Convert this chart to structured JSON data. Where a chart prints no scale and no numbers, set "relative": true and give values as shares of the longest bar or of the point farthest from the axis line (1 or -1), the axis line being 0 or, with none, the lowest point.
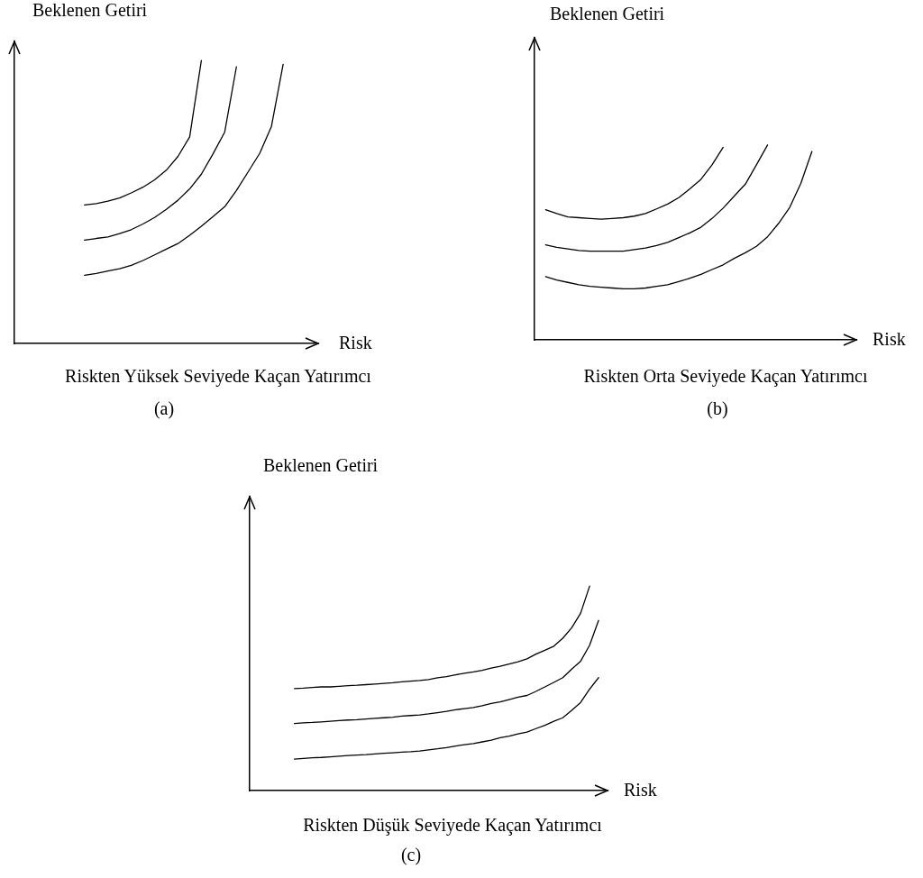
{
  "chart_data": [
    {
      "type": "line",
      "relative": true,
      "tick_labels": false,
      "title": "Riskten Yüksek Seviyede Kaçan Yatırımcı",
      "subtitle": "(a)",
      "xlabel": "Risk",
      "ylabel": "Beklenen Getiri",
      "categories": [
        null,
        null,
        null,
        null,
        null,
        null,
        null,
        null,
        null,
        null,
        null,
        null,
        null,
        null,
        null,
        null,
        null,
        null,
        null,
        null,
        null,
        null,
        null,
        null,
        null,
        null,
        null
      ],
      "series": [
        {
          "color": "#000000",
          "values": [
            null,
            null,
            null,
            null,
            null,
            null,
            0.489,
            0.494,
            0.503,
            0.514,
            0.532,
            0.552,
            0.578,
            0.612,
            0.661,
            0.73,
            1.0,
            null,
            null,
            null,
            null,
            null,
            null,
            null,
            null,
            null,
            null
          ]
        },
        {
          "color": "#000000",
          "values": [
            null,
            null,
            null,
            null,
            null,
            null,
            0.365,
            0.371,
            0.376,
            0.388,
            0.402,
            0.422,
            0.445,
            0.474,
            0.506,
            0.546,
            0.598,
            0.67,
            0.747,
            0.977,
            null,
            null,
            null,
            null,
            null,
            null,
            null
          ]
        },
        {
          "color": "#000000",
          "values": [
            null,
            null,
            null,
            null,
            null,
            null,
            0.241,
            0.247,
            0.256,
            0.264,
            0.276,
            0.293,
            0.313,
            0.333,
            0.353,
            0.382,
            0.414,
            0.448,
            0.483,
            0.54,
            0.606,
            0.672,
            0.767,
            0.986,
            null,
            null,
            null
          ]
        }
      ]
    },
    {
      "type": "line",
      "relative": true,
      "tick_labels": false,
      "title": "Riskten Orta Seviyede Kaçan Yatırımcı",
      "subtitle": "(b)",
      "xlabel": "Risk",
      "ylabel": "Beklenen Getiri",
      "categories": [
        null,
        null,
        null,
        null,
        null,
        null,
        null,
        null,
        null,
        null,
        null,
        null,
        null,
        null,
        null,
        null,
        null,
        null,
        null,
        null,
        null,
        null,
        null,
        null,
        null,
        null,
        null,
        null,
        null,
        null
      ],
      "series": [
        {
          "color": "#000000",
          "values": [
            null,
            0.668,
            0.648,
            0.631,
            0.627,
            0.623,
            0.619,
            0.623,
            0.627,
            0.635,
            0.648,
            0.672,
            0.697,
            0.73,
            0.775,
            0.824,
            0.898,
            0.988,
            null,
            null,
            null,
            null,
            null,
            null,
            null,
            null,
            null,
            null,
            null,
            null
          ]
        },
        {
          "color": "#000000",
          "values": [
            null,
            0.488,
            0.475,
            0.467,
            0.459,
            0.455,
            0.455,
            0.455,
            0.455,
            0.463,
            0.471,
            0.484,
            0.5,
            0.525,
            0.549,
            0.578,
            0.623,
            0.676,
            0.738,
            0.799,
            0.898,
            1.0,
            null,
            null,
            null,
            null,
            null,
            null,
            null,
            null
          ]
        },
        {
          "color": "#000000",
          "values": [
            null,
            0.324,
            0.307,
            0.295,
            0.283,
            0.275,
            0.27,
            0.266,
            0.262,
            0.262,
            0.266,
            0.275,
            0.283,
            0.299,
            0.316,
            0.336,
            0.361,
            0.385,
            0.418,
            0.447,
            0.48,
            0.529,
            0.598,
            0.68,
            0.803,
            0.967,
            null,
            null,
            null,
            null
          ]
        }
      ]
    },
    {
      "type": "line",
      "relative": true,
      "tick_labels": false,
      "title": "Riskten Düşük Seviyede Kaçan Yatırımcı",
      "subtitle": "(c)",
      "xlabel": "Risk",
      "ylabel": "Beklenen Getiri",
      "categories": [
        null,
        null,
        null,
        null,
        null,
        null,
        null,
        null,
        null,
        null,
        null,
        null,
        null,
        null,
        null,
        null,
        null,
        null,
        null,
        null,
        null,
        null,
        null,
        null,
        null,
        null,
        null,
        null,
        null,
        null,
        null,
        null,
        null,
        null,
        null,
        null,
        null,
        null,
        null,
        null,
        null
      ],
      "series": [
        {
          "color": "#000000",
          "values": [
            null,
            null,
            null,
            null,
            null,
            0.499,
            0.501,
            0.504,
            0.507,
            0.507,
            0.51,
            0.513,
            0.515,
            0.518,
            0.521,
            0.524,
            0.527,
            0.532,
            0.535,
            0.538,
            0.543,
            0.552,
            0.557,
            0.566,
            0.574,
            0.58,
            0.588,
            0.599,
            0.608,
            0.619,
            0.63,
            0.644,
            0.667,
            0.686,
            0.706,
            0.745,
            0.796,
            0.868,
            1.0,
            null,
            null
          ]
        },
        {
          "color": "#000000",
          "values": [
            null,
            null,
            null,
            null,
            null,
            0.328,
            0.331,
            0.333,
            0.336,
            0.339,
            0.342,
            0.345,
            0.347,
            0.35,
            0.353,
            0.356,
            0.359,
            0.364,
            0.367,
            0.37,
            0.375,
            0.381,
            0.387,
            0.395,
            0.401,
            0.406,
            0.415,
            0.426,
            0.434,
            0.445,
            0.457,
            0.465,
            0.485,
            0.507,
            0.529,
            0.552,
            0.594,
            0.633,
            0.711,
            0.832,
            null
          ]
        },
        {
          "color": "#000000",
          "values": [
            null,
            null,
            null,
            null,
            null,
            0.154,
            0.157,
            0.16,
            0.162,
            0.165,
            0.168,
            0.171,
            0.174,
            0.176,
            0.179,
            0.182,
            0.185,
            0.188,
            0.19,
            0.193,
            0.199,
            0.204,
            0.21,
            0.218,
            0.224,
            0.23,
            0.238,
            0.246,
            0.258,
            0.266,
            0.277,
            0.286,
            0.303,
            0.319,
            0.339,
            0.356,
            0.392,
            0.431,
            0.496,
            0.552,
            null
          ]
        }
      ]
    }
  ]
}
